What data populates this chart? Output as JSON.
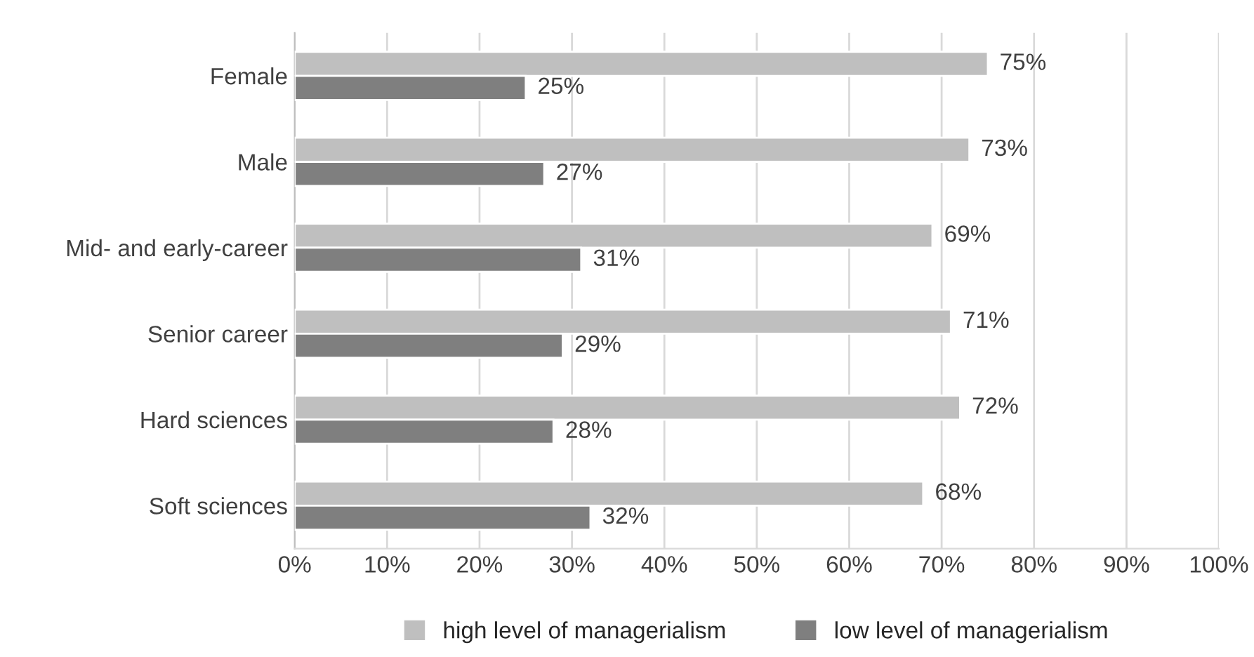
{
  "chart_data": {
    "type": "bar",
    "orientation": "horizontal",
    "categories": [
      "Female",
      "Male",
      "Mid- and early-career",
      "Senior career",
      "Hard sciences",
      "Soft sciences"
    ],
    "series": [
      {
        "name": "high level of managerialism",
        "color": "#bfbfbf",
        "values": [
          75,
          73,
          69,
          71,
          72,
          68
        ],
        "value_labels": [
          "75%",
          "73%",
          "69%",
          "71%",
          "72%",
          "68%"
        ]
      },
      {
        "name": "low level of managerialism",
        "color": "#7f7f7f",
        "values": [
          25,
          27,
          31,
          29,
          28,
          32
        ],
        "value_labels": [
          "25%",
          "27%",
          "31%",
          "29%",
          "28%",
          "32%"
        ]
      }
    ],
    "xlim": [
      0,
      100
    ],
    "xticks": [
      {
        "value": 0,
        "label": "0%"
      },
      {
        "value": 10,
        "label": "10%"
      },
      {
        "value": 20,
        "label": "20%"
      },
      {
        "value": 30,
        "label": "30%"
      },
      {
        "value": 40,
        "label": "40%"
      },
      {
        "value": 50,
        "label": "50%"
      },
      {
        "value": 60,
        "label": "60%"
      },
      {
        "value": 70,
        "label": "70%"
      },
      {
        "value": 80,
        "label": "80%"
      },
      {
        "value": 90,
        "label": "90%"
      },
      {
        "value": 100,
        "label": "100%"
      }
    ],
    "grid": "x",
    "legend": "bottom"
  }
}
